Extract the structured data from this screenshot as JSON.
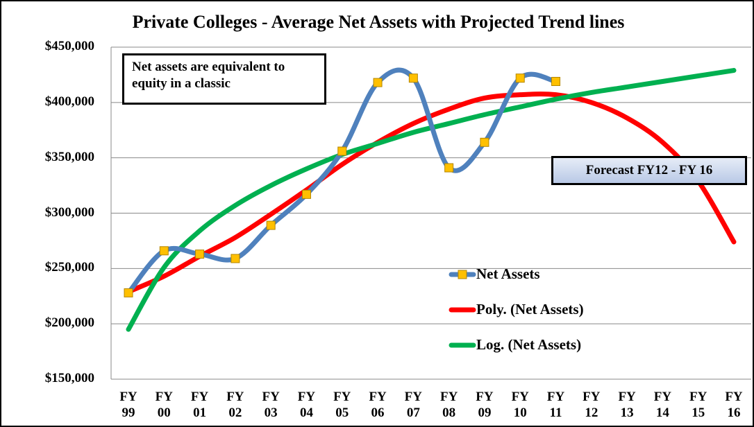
{
  "chart_data": {
    "type": "line",
    "title": "Private Colleges - Average Net Assets with Projected Trend lines",
    "categories": [
      "FY 99",
      "FY 00",
      "FY 01",
      "FY 02",
      "FY 03",
      "FY 04",
      "FY 05",
      "FY 06",
      "FY 07",
      "FY 08",
      "FY 09",
      "FY 10",
      "FY 11",
      "FY 12",
      "FY 13",
      "FY 14",
      "FY 15",
      "FY 16"
    ],
    "series": [
      {
        "name": "Net Assets",
        "color": "#4f81bd",
        "marker_color": "#ffc000",
        "values": [
          228000,
          266000,
          263000,
          259000,
          289000,
          317000,
          356000,
          418000,
          422000,
          341000,
          364000,
          422000,
          419000,
          null,
          null,
          null,
          null,
          null
        ]
      },
      {
        "name": "Poly. (Net Assets)",
        "color": "#ff0000",
        "values": [
          229000,
          243000,
          261000,
          278000,
          299000,
          321000,
          344000,
          364000,
          381000,
          394000,
          404000,
          407000,
          407000,
          400000,
          386000,
          364000,
          329000,
          274000
        ]
      },
      {
        "name": "Log. (Net Assets)",
        "color": "#00b050",
        "values": [
          195000,
          251000,
          284000,
          307000,
          325000,
          340000,
          353000,
          363000,
          373000,
          381000,
          389000,
          396000,
          403000,
          409000,
          414000,
          419000,
          424000,
          429000
        ]
      }
    ],
    "ylim": [
      150000,
      450000
    ],
    "yticks": [
      {
        "value": 150000,
        "label": "$150,000"
      },
      {
        "value": 200000,
        "label": "$200,000"
      },
      {
        "value": 250000,
        "label": "$250,000"
      },
      {
        "value": 300000,
        "label": "$300,000"
      },
      {
        "value": 350000,
        "label": "$350,000"
      },
      {
        "value": 400000,
        "label": "$400,000"
      },
      {
        "value": 450000,
        "label": "$450,000"
      }
    ],
    "grid": true,
    "annotations": [
      "Net assets are equivalent to equity in a classic",
      "Forecast FY12 - FY 16"
    ]
  }
}
